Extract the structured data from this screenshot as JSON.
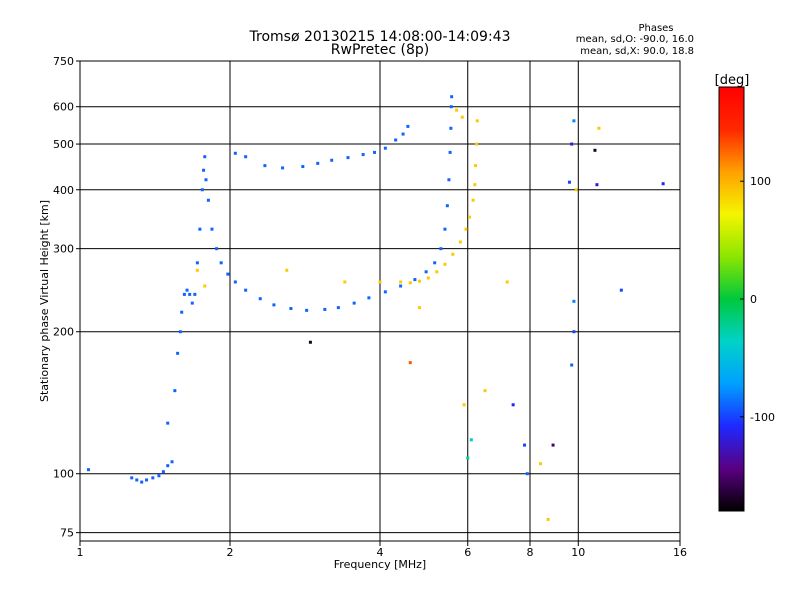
{
  "chart_data": {
    "type": "scatter",
    "title": "Tromsø 20130215 14:08:00-14:09:43",
    "subtitle": "RwPretec (8p)",
    "xlabel": "Frequency [MHz]",
    "ylabel": "Stationary phase Virtual Height [km]",
    "x_scale": "log",
    "y_scale": "log",
    "xlim": [
      1,
      16
    ],
    "ylim": [
      72,
      750
    ],
    "x_ticks": [
      "1",
      "2",
      "4",
      "6",
      "8",
      "10",
      "16"
    ],
    "y_ticks": [
      "75",
      "100",
      "200",
      "300",
      "400",
      "500",
      "600",
      "750"
    ],
    "grid": true,
    "legend": {
      "title": "Phases",
      "lines": [
        "mean, sd,O: -90.0, 16.0",
        "mean, sd,X:  90.0, 18.8"
      ]
    },
    "colorbar": {
      "label": "[deg]",
      "min": -180,
      "max": 180,
      "ticks": [
        "100",
        "0",
        "-100"
      ],
      "tick_values": [
        100,
        0,
        -100
      ],
      "stops": [
        "#000000",
        "#5a0082",
        "#1e28ff",
        "#00a0ff",
        "#00d2c8",
        "#00c83c",
        "#8ce600",
        "#f5f500",
        "#ffa000",
        "#ff2800",
        "#ff0000"
      ]
    },
    "series": [
      {
        "mode": "O",
        "phase": -90,
        "points": [
          [
            1.04,
            102
          ],
          [
            1.27,
            98
          ],
          [
            1.3,
            97
          ],
          [
            1.33,
            96
          ],
          [
            1.36,
            97
          ],
          [
            1.4,
            98
          ],
          [
            1.44,
            99
          ],
          [
            1.47,
            101
          ],
          [
            1.5,
            104
          ],
          [
            1.53,
            106
          ],
          [
            1.5,
            128
          ],
          [
            1.55,
            150
          ],
          [
            1.57,
            180
          ],
          [
            1.59,
            200
          ],
          [
            1.6,
            220
          ],
          [
            1.62,
            240
          ],
          [
            1.64,
            245
          ],
          [
            1.66,
            240
          ],
          [
            1.68,
            230
          ],
          [
            1.7,
            240
          ],
          [
            1.72,
            280
          ],
          [
            1.74,
            330
          ],
          [
            1.76,
            400
          ],
          [
            1.77,
            440
          ],
          [
            1.78,
            470
          ],
          [
            1.79,
            420
          ],
          [
            1.81,
            380
          ],
          [
            1.84,
            330
          ],
          [
            1.88,
            300
          ],
          [
            1.92,
            280
          ],
          [
            1.98,
            265
          ],
          [
            2.05,
            255
          ],
          [
            2.15,
            245
          ],
          [
            2.3,
            235
          ],
          [
            2.45,
            228
          ],
          [
            2.65,
            224
          ],
          [
            2.85,
            222
          ],
          [
            3.1,
            223
          ],
          [
            3.3,
            225
          ],
          [
            3.55,
            230
          ],
          [
            3.8,
            236
          ],
          [
            4.1,
            243
          ],
          [
            4.4,
            250
          ],
          [
            4.7,
            258
          ],
          [
            4.95,
            268
          ],
          [
            5.15,
            280
          ],
          [
            5.3,
            300
          ],
          [
            5.4,
            330
          ],
          [
            5.46,
            370
          ],
          [
            5.5,
            420
          ],
          [
            5.53,
            480
          ],
          [
            5.55,
            540
          ],
          [
            5.56,
            600
          ],
          [
            5.57,
            630
          ],
          [
            2.05,
            478
          ],
          [
            2.15,
            470
          ],
          [
            2.35,
            450
          ],
          [
            2.55,
            445
          ],
          [
            2.8,
            448
          ],
          [
            3.0,
            455
          ],
          [
            3.2,
            462
          ],
          [
            3.45,
            468
          ],
          [
            3.7,
            475
          ],
          [
            3.9,
            480
          ],
          [
            4.1,
            490
          ],
          [
            4.3,
            510
          ],
          [
            4.45,
            525
          ],
          [
            4.55,
            545
          ]
        ]
      },
      {
        "mode": "X",
        "phase": 90,
        "points": [
          [
            4.4,
            255
          ],
          [
            4.6,
            254
          ],
          [
            4.8,
            256
          ],
          [
            5.0,
            260
          ],
          [
            5.2,
            268
          ],
          [
            5.4,
            278
          ],
          [
            5.6,
            292
          ],
          [
            5.8,
            310
          ],
          [
            5.95,
            330
          ],
          [
            6.05,
            350
          ],
          [
            6.15,
            380
          ],
          [
            6.2,
            410
          ],
          [
            6.22,
            450
          ],
          [
            6.25,
            500
          ],
          [
            6.27,
            560
          ],
          [
            5.7,
            590
          ],
          [
            5.85,
            570
          ],
          [
            1.72,
            270
          ],
          [
            1.78,
            250
          ],
          [
            2.6,
            270
          ],
          [
            3.4,
            255
          ],
          [
            4.0,
            255
          ],
          [
            4.8,
            225
          ],
          [
            5.9,
            140
          ],
          [
            6.5,
            150
          ],
          [
            7.2,
            255
          ],
          [
            8.4,
            105
          ],
          [
            8.7,
            80
          ],
          [
            9.9,
            400
          ],
          [
            11.0,
            540
          ]
        ]
      }
    ],
    "outliers": [
      {
        "x": 6.0,
        "y": 108,
        "phase": -20
      },
      {
        "x": 6.1,
        "y": 118,
        "phase": -40
      },
      {
        "x": 7.4,
        "y": 140,
        "phase": -110
      },
      {
        "x": 9.8,
        "y": 232,
        "phase": -80
      },
      {
        "x": 9.8,
        "y": 200,
        "phase": -100
      },
      {
        "x": 9.7,
        "y": 170,
        "phase": -90
      },
      {
        "x": 9.8,
        "y": 560,
        "phase": -80
      },
      {
        "x": 9.7,
        "y": 500,
        "phase": -120
      },
      {
        "x": 9.6,
        "y": 415,
        "phase": -100
      },
      {
        "x": 10.8,
        "y": 485,
        "phase": -170
      },
      {
        "x": 10.9,
        "y": 410,
        "phase": -120
      },
      {
        "x": 12.2,
        "y": 245,
        "phase": -100
      },
      {
        "x": 14.8,
        "y": 412,
        "phase": -110
      },
      {
        "x": 2.9,
        "y": 190,
        "phase": -170
      },
      {
        "x": 4.6,
        "y": 172,
        "phase": 130
      },
      {
        "x": 7.8,
        "y": 115,
        "phase": -100
      },
      {
        "x": 7.9,
        "y": 100,
        "phase": -90
      },
      {
        "x": 8.9,
        "y": 115,
        "phase": -150
      }
    ]
  }
}
